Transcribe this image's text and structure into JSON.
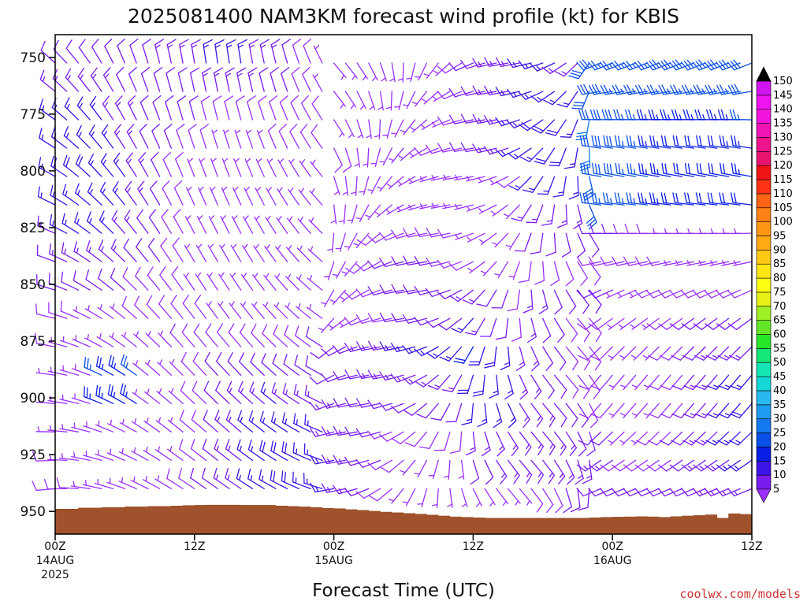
{
  "chart_data": {
    "type": "wind_barb_timeseries",
    "title": "2025081400 NAM3KM forecast wind profile (kt) for KBIS",
    "xlabel": "Forecast Time (UTC)",
    "credit": "coolwx.com/models",
    "units": "kt",
    "x_range_hours": [
      0,
      60
    ],
    "y_range_hpa": [
      740,
      960
    ],
    "y_ticks": [
      750,
      775,
      800,
      825,
      850,
      875,
      900,
      925,
      950
    ],
    "x_ticks": [
      {
        "hour": 0,
        "line1": "00Z",
        "line2": "14AUG",
        "line3": "2025"
      },
      {
        "hour": 12,
        "line1": "12Z",
        "line2": "",
        "line3": ""
      },
      {
        "hour": 24,
        "line1": "00Z",
        "line2": "15AUG",
        "line3": ""
      },
      {
        "hour": 36,
        "line1": "12Z",
        "line2": "",
        "line3": ""
      },
      {
        "hour": 48,
        "line1": "00Z",
        "line2": "16AUG",
        "line3": ""
      },
      {
        "hour": 60,
        "line1": "12Z",
        "line2": "",
        "line3": ""
      }
    ],
    "colorbar": {
      "levels": [
        5,
        10,
        15,
        20,
        25,
        30,
        35,
        40,
        45,
        50,
        55,
        60,
        65,
        70,
        75,
        80,
        85,
        90,
        95,
        100,
        105,
        110,
        115,
        120,
        125,
        130,
        135,
        140,
        145,
        150
      ],
      "colors": [
        "#9b30ff",
        "#7a1cf0",
        "#3c14e6",
        "#0a1ee6",
        "#0a50e6",
        "#1478f0",
        "#1e9bf0",
        "#28b9f0",
        "#14d7d7",
        "#14e6b4",
        "#14e678",
        "#28e628",
        "#64e628",
        "#a0f028",
        "#e6f014",
        "#ffff14",
        "#ffe614",
        "#ffc814",
        "#ffaa14",
        "#ff9614",
        "#ff8214",
        "#ff6414",
        "#ff3214",
        "#f01414",
        "#e6146e",
        "#f0148c",
        "#f014b4",
        "#f014dc",
        "#f014f0",
        "#d214f0"
      ]
    },
    "terrain_surface_hpa": [
      [
        0,
        949
      ],
      [
        1,
        949
      ],
      [
        2,
        948.5
      ],
      [
        3,
        948.5
      ],
      [
        4,
        948.3
      ],
      [
        5,
        948.3
      ],
      [
        6,
        948
      ],
      [
        7,
        948
      ],
      [
        8,
        947.8
      ],
      [
        9,
        947.8
      ],
      [
        10,
        947.6
      ],
      [
        11,
        947.4
      ],
      [
        12,
        947.3
      ],
      [
        13,
        947.2
      ],
      [
        14,
        947.2
      ],
      [
        15,
        947.2
      ],
      [
        16,
        947.3
      ],
      [
        17,
        947.3
      ],
      [
        18,
        947.3
      ],
      [
        19,
        947.6
      ],
      [
        20,
        947.8
      ],
      [
        21,
        948
      ],
      [
        22,
        948.3
      ],
      [
        23,
        948.6
      ],
      [
        24,
        948.8
      ],
      [
        25,
        949.2
      ],
      [
        26,
        949.5
      ],
      [
        27,
        949.9
      ],
      [
        28,
        950.3
      ],
      [
        29,
        950.6
      ],
      [
        30,
        950.9
      ],
      [
        31,
        951.2
      ],
      [
        32,
        951.6
      ],
      [
        33,
        952
      ],
      [
        34,
        952.4
      ],
      [
        35,
        952.6
      ],
      [
        36,
        952.8
      ],
      [
        37,
        953
      ],
      [
        38,
        953
      ],
      [
        39,
        953
      ],
      [
        40,
        953
      ],
      [
        41,
        953
      ],
      [
        42,
        953
      ],
      [
        43,
        953
      ],
      [
        44,
        953
      ],
      [
        45,
        953
      ],
      [
        46,
        952.8
      ],
      [
        47,
        952.6
      ],
      [
        48,
        952.5
      ],
      [
        49,
        952.4
      ],
      [
        50,
        952.3
      ],
      [
        51,
        952.4
      ],
      [
        52,
        952.6
      ],
      [
        53,
        952.3
      ],
      [
        54,
        952
      ],
      [
        55,
        951.8
      ],
      [
        56,
        951.5
      ],
      [
        57,
        953
      ],
      [
        58,
        951
      ],
      [
        59,
        951.3
      ],
      [
        60,
        951.4
      ]
    ],
    "wind_field_description": "Barbs every hour from 0 to 60 and every 12.5 hPa from 740 to surface; speeds mostly 5-20 kt (purple/blue), 25-40 kt light blue near 890 hPa at 00-06Z 14AUG and aloft 48-60 h."
  }
}
